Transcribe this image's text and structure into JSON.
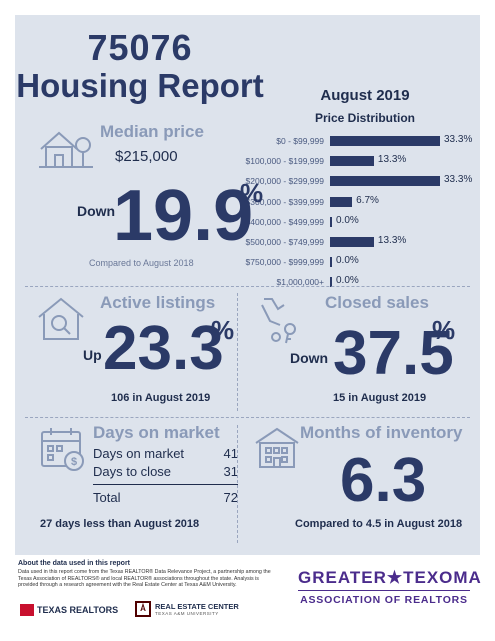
{
  "header": {
    "zip": "75076",
    "title": "Housing Report",
    "month": "August 2019"
  },
  "price_distribution": {
    "title": "Price Distribution",
    "rows": [
      {
        "label": "$0 - $99,999",
        "value": "33.3%",
        "pct": 33.3
      },
      {
        "label": "$100,000 - $199,999",
        "value": "13.3%",
        "pct": 13.3
      },
      {
        "label": "$200,000 - $299,999",
        "value": "33.3%",
        "pct": 33.3
      },
      {
        "label": "$300,000 - $399,999",
        "value": "6.7%",
        "pct": 6.7
      },
      {
        "label": "$400,000 - $499,999",
        "value": "0.0%",
        "pct": 0.0
      },
      {
        "label": "$500,000 - $749,999",
        "value": "13.3%",
        "pct": 13.3
      },
      {
        "label": "$750,000 - $999,999",
        "value": "0.0%",
        "pct": 0.0
      },
      {
        "label": "$1,000,000+",
        "value": "0.0%",
        "pct": 0.0
      }
    ]
  },
  "median_price": {
    "title": "Median price",
    "value": "$215,000",
    "direction": "Down",
    "change": "19.9",
    "pct_sign": "%",
    "note": "Compared to August 2018"
  },
  "active_listings": {
    "title": "Active listings",
    "direction": "Up",
    "change": "23.3",
    "pct_sign": "%",
    "note": "106 in August 2019"
  },
  "closed_sales": {
    "title": "Closed sales",
    "direction": "Down",
    "change": "37.5",
    "pct_sign": "%",
    "note": "15 in August 2019"
  },
  "days_on_market": {
    "title": "Days on market",
    "rows": [
      {
        "label": "Days on market",
        "value": "41"
      },
      {
        "label": "Days to close",
        "value": "31"
      }
    ],
    "total_label": "Total",
    "total_value": "72",
    "note": "27 days less than August 2018"
  },
  "months_inventory": {
    "title": "Months of inventory",
    "value": "6.3",
    "note": "Compared to 4.5 in August 2018"
  },
  "footer": {
    "heading": "About the data used in this report",
    "text": "Data used in this report come from the Texas REALTOR® Data Relevance Project, a partnership among the Texas Association of REALTORS® and local REALTOR® associations throughout the state. Analysis is provided through a research agreement with the Real Estate Center at Texas A&M University.",
    "logo1": "TEXAS REALTORS",
    "logo2": "REAL ESTATE CENTER",
    "logo2_sub": "TEXAS A&M UNIVERSITY",
    "assoc_line1": "GREATER★TEXOMA",
    "assoc_line2": "ASSOCIATION OF REALTORS"
  },
  "colors": {
    "navy": "#2b3a67",
    "light": "#8a9ab8",
    "panel": "#dde3ec",
    "purple": "#4b2c8c"
  }
}
